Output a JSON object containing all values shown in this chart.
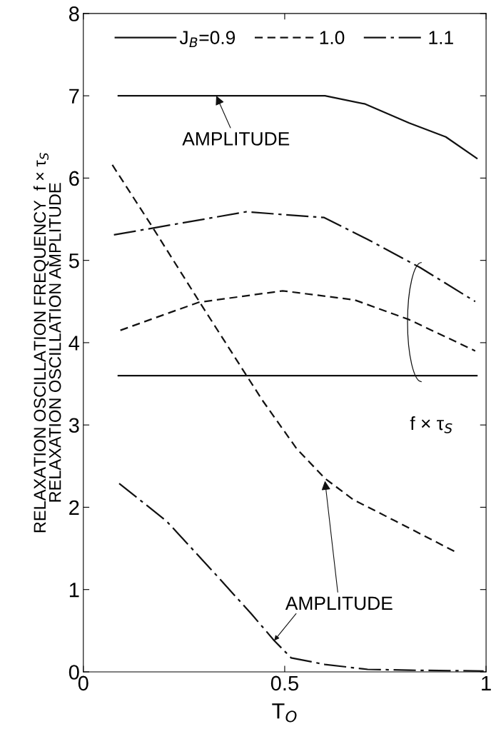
{
  "chart_data": {
    "type": "line",
    "xlabel": "T$_{O}$",
    "ylabel": "RELAXATION OSCILLATION FREQUENCY  f × τ$_{S}$\nRELAXATION OSCILLATION AMPLITUDE",
    "xlim": [
      0,
      1
    ],
    "xticks": [
      0,
      0.5,
      1
    ],
    "ylim": [
      0,
      8
    ],
    "yticks": [
      0,
      1,
      2,
      3,
      4,
      5,
      6,
      7,
      8
    ],
    "grid": false,
    "legend": "top",
    "marker": "none",
    "series": [
      {
        "name": "J$_{B}$=0.9",
        "color": "#111111",
        "line_style": "solid",
        "x": [
          0.087,
          0.3,
          0.6,
          0.7,
          0.809,
          0.9,
          0.977
        ],
        "values": [
          7.0,
          7.0,
          7.0,
          6.9,
          6.67,
          6.5,
          6.24
        ]
      },
      {
        "color": "#111111",
        "line_style": "solid",
        "x": [
          0.087,
          0.977
        ],
        "values": [
          3.6,
          3.6
        ]
      },
      {
        "name": "1.0",
        "color": "#111111",
        "line_style": "dashed",
        "x": [
          0.072,
          0.167,
          0.293,
          0.404,
          0.446,
          0.53,
          0.6,
          0.671,
          0.776,
          0.927
        ],
        "values": [
          6.16,
          5.44,
          4.46,
          3.61,
          3.29,
          2.71,
          2.35,
          2.09,
          1.83,
          1.45
        ]
      },
      {
        "color": "#111111",
        "line_style": "dashed",
        "x": [
          0.092,
          0.286,
          0.495,
          0.673,
          0.809,
          0.973
        ],
        "values": [
          4.15,
          4.49,
          4.63,
          4.52,
          4.28,
          3.9
        ]
      },
      {
        "name": "1.1",
        "color": "#111111",
        "line_style": "dashdot",
        "x": [
          0.076,
          0.404,
          0.598,
          0.704,
          0.837,
          0.973
        ],
        "values": [
          5.31,
          5.59,
          5.52,
          5.26,
          4.91,
          4.5
        ]
      },
      {
        "color": "#111111",
        "line_style": "dashdot",
        "x": [
          0.089,
          0.207,
          0.32,
          0.418,
          0.474,
          0.516,
          0.6,
          0.706,
          0.811,
          0.994
        ],
        "values": [
          2.29,
          1.83,
          1.23,
          0.7,
          0.38,
          0.17,
          0.09,
          0.03,
          0.02,
          0.01
        ]
      }
    ],
    "annotations": [
      {
        "text": "AMPLITUDE",
        "x": 0.33,
        "y": 7.0
      },
      {
        "text": "AMPLITUDE",
        "x": 0.6,
        "y": 2.32
      },
      {
        "text": "f × τ$_{S}$",
        "x": 0.84,
        "y": 3.6
      }
    ]
  }
}
